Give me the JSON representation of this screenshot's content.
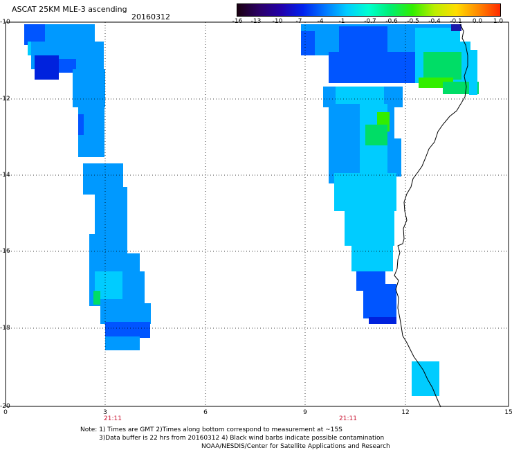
{
  "header": {
    "title": "ASCAT 25KM MLE-3 ascending",
    "date": "20160312"
  },
  "colorbar": {
    "labels": [
      "-16",
      "-13",
      "-10",
      "-7",
      "-4",
      "-1",
      "-0.7",
      "-0.6",
      "-0.5",
      "-0.4",
      "-0.1",
      "0.0",
      "1.0"
    ],
    "colors": [
      "#1a0010",
      "#2b0066",
      "#2200aa",
      "#0022ee",
      "#0077ff",
      "#00ccff",
      "#00ffd0",
      "#00ee70",
      "#33ee00",
      "#bbee00",
      "#ffdd00",
      "#ff8800",
      "#ff2a00"
    ]
  },
  "axes": {
    "y_ticks": [
      "-10",
      "-12",
      "-14",
      "-16",
      "-18",
      "-20"
    ],
    "x_ticks": [
      "0",
      "3",
      "6",
      "9",
      "12",
      "15"
    ],
    "times": [
      "21:11",
      "21:11"
    ]
  },
  "notes": {
    "line1": "Note: 1) Times are GMT 2)Times along bottom correspond to measurement at ~15S",
    "line2": "3)Data buffer is 22 hrs from 20160312 4) Black wind barbs indicate possible contamination",
    "line3": "NOAA/NESDIS/Center for Satellite Applications and Research"
  },
  "colors": {
    "cyan": "#00ccff",
    "light_blue": "#0099ff",
    "blue": "#0055ff",
    "dark_blue": "#0022dd",
    "green": "#00dd66",
    "bright_green": "#33ee00",
    "navy": "#1a1aaa"
  }
}
